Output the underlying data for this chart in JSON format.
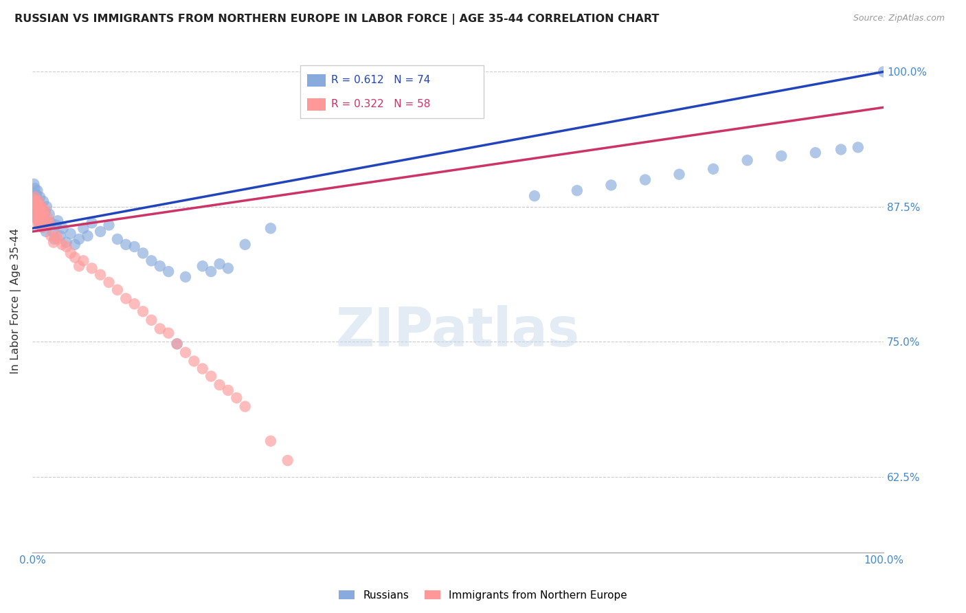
{
  "title": "RUSSIAN VS IMMIGRANTS FROM NORTHERN EUROPE IN LABOR FORCE | AGE 35-44 CORRELATION CHART",
  "source": "Source: ZipAtlas.com",
  "ylabel": "In Labor Force | Age 35-44",
  "xlim": [
    0.0,
    1.0
  ],
  "ylim": [
    0.555,
    1.02
  ],
  "yticks": [
    0.625,
    0.75,
    0.875,
    1.0
  ],
  "ytick_labels": [
    "62.5%",
    "75.0%",
    "87.5%",
    "100.0%"
  ],
  "blue_R": "0.612",
  "blue_N": "74",
  "pink_R": "0.322",
  "pink_N": "58",
  "blue_color": "#88AADD",
  "pink_color": "#FF9999",
  "blue_line_color": "#2244BB",
  "pink_line_color": "#CC3366",
  "legend_label_blue": "Russians",
  "legend_label_pink": "Immigrants from Northern Europe",
  "watermark": "ZIPatlas",
  "background_color": "#ffffff",
  "title_color": "#222222",
  "axis_label_color": "#4488CC",
  "grid_color": "#cccccc",
  "blue_x": [
    0.001,
    0.002,
    0.002,
    0.003,
    0.003,
    0.003,
    0.004,
    0.004,
    0.005,
    0.005,
    0.005,
    0.006,
    0.006,
    0.007,
    0.007,
    0.008,
    0.008,
    0.009,
    0.009,
    0.01,
    0.01,
    0.011,
    0.012,
    0.012,
    0.013,
    0.014,
    0.015,
    0.016,
    0.017,
    0.018,
    0.02,
    0.022,
    0.024,
    0.026,
    0.028,
    0.03,
    0.033,
    0.036,
    0.04,
    0.045,
    0.05,
    0.055,
    0.06,
    0.065,
    0.07,
    0.08,
    0.09,
    0.1,
    0.11,
    0.12,
    0.13,
    0.14,
    0.15,
    0.16,
    0.17,
    0.18,
    0.2,
    0.21,
    0.22,
    0.23,
    0.25,
    0.28,
    0.59,
    0.64,
    0.68,
    0.72,
    0.76,
    0.8,
    0.84,
    0.88,
    0.92,
    0.95,
    0.97,
    1.0
  ],
  "blue_y": [
    0.884,
    0.896,
    0.878,
    0.882,
    0.872,
    0.892,
    0.88,
    0.868,
    0.886,
    0.876,
    0.864,
    0.89,
    0.874,
    0.88,
    0.866,
    0.878,
    0.86,
    0.884,
    0.87,
    0.876,
    0.862,
    0.868,
    0.872,
    0.856,
    0.88,
    0.864,
    0.87,
    0.852,
    0.875,
    0.858,
    0.868,
    0.86,
    0.852,
    0.845,
    0.858,
    0.862,
    0.848,
    0.855,
    0.842,
    0.85,
    0.84,
    0.845,
    0.855,
    0.848,
    0.86,
    0.852,
    0.858,
    0.845,
    0.84,
    0.838,
    0.832,
    0.825,
    0.82,
    0.815,
    0.748,
    0.81,
    0.82,
    0.815,
    0.822,
    0.818,
    0.84,
    0.855,
    0.885,
    0.89,
    0.895,
    0.9,
    0.905,
    0.91,
    0.918,
    0.922,
    0.925,
    0.928,
    0.93,
    1.0
  ],
  "pink_x": [
    0.001,
    0.002,
    0.002,
    0.003,
    0.003,
    0.004,
    0.004,
    0.005,
    0.005,
    0.006,
    0.006,
    0.007,
    0.007,
    0.008,
    0.008,
    0.009,
    0.009,
    0.01,
    0.01,
    0.011,
    0.012,
    0.013,
    0.014,
    0.015,
    0.016,
    0.018,
    0.02,
    0.022,
    0.025,
    0.028,
    0.03,
    0.035,
    0.04,
    0.045,
    0.05,
    0.055,
    0.06,
    0.07,
    0.08,
    0.09,
    0.1,
    0.11,
    0.12,
    0.13,
    0.14,
    0.15,
    0.16,
    0.17,
    0.18,
    0.19,
    0.2,
    0.21,
    0.22,
    0.23,
    0.24,
    0.25,
    0.28,
    0.3
  ],
  "pink_y": [
    0.882,
    0.876,
    0.87,
    0.884,
    0.874,
    0.88,
    0.866,
    0.878,
    0.864,
    0.876,
    0.86,
    0.88,
    0.868,
    0.876,
    0.858,
    0.872,
    0.862,
    0.876,
    0.86,
    0.866,
    0.856,
    0.87,
    0.862,
    0.872,
    0.858,
    0.865,
    0.86,
    0.848,
    0.842,
    0.848,
    0.845,
    0.84,
    0.838,
    0.832,
    0.828,
    0.82,
    0.825,
    0.818,
    0.812,
    0.805,
    0.798,
    0.79,
    0.785,
    0.778,
    0.77,
    0.762,
    0.758,
    0.748,
    0.74,
    0.732,
    0.725,
    0.718,
    0.71,
    0.705,
    0.698,
    0.69,
    0.658,
    0.64
  ]
}
